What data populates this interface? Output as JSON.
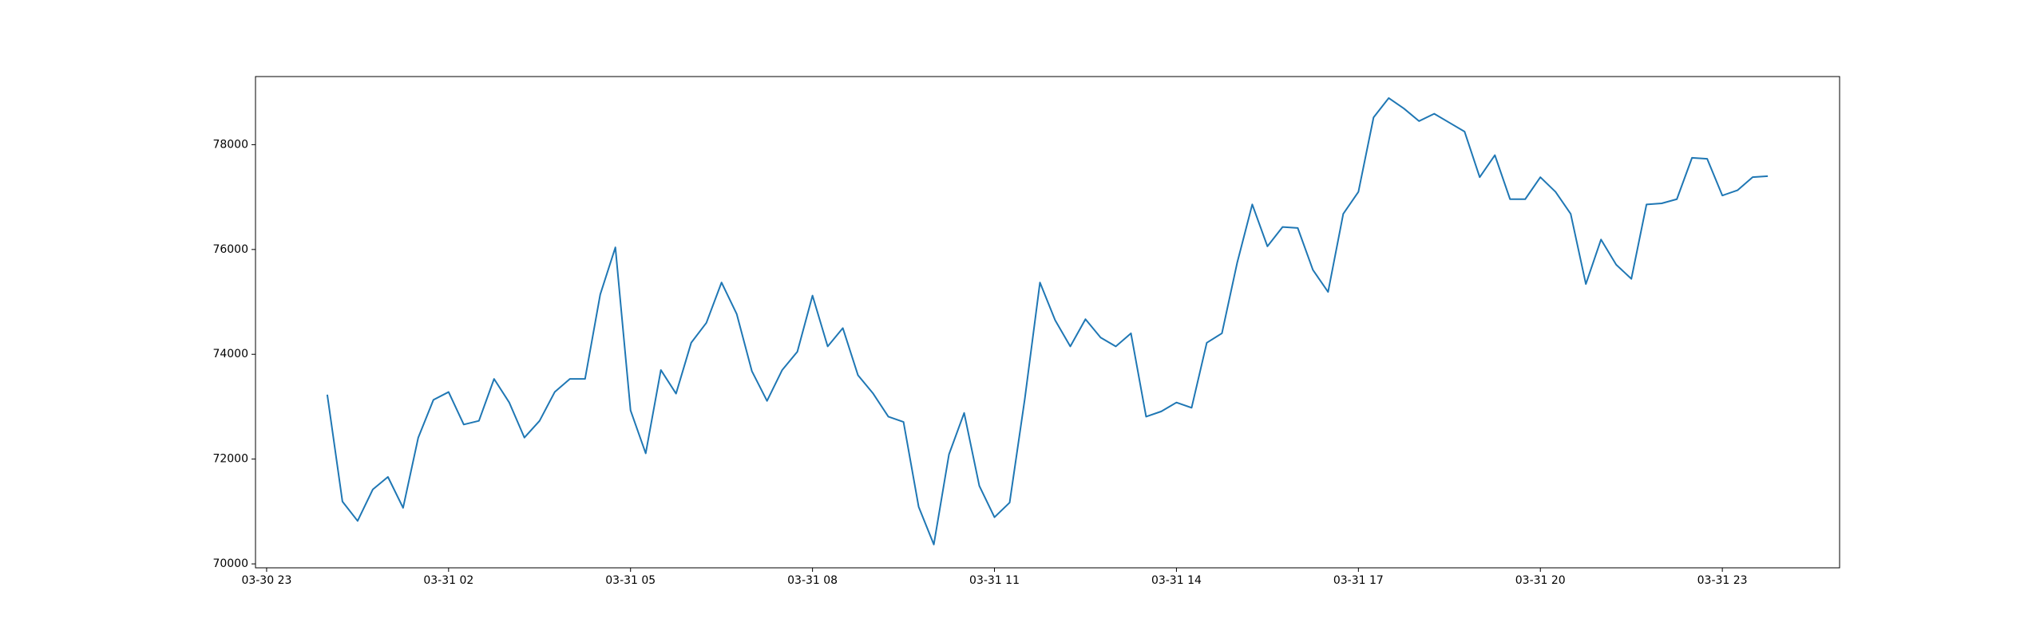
{
  "chart_data": {
    "type": "line",
    "x": [
      "03-31 00:00",
      "03-31 00:15",
      "03-31 00:30",
      "03-31 00:45",
      "03-31 01:00",
      "03-31 01:15",
      "03-31 01:30",
      "03-31 01:45",
      "03-31 02:00",
      "03-31 02:15",
      "03-31 02:30",
      "03-31 02:45",
      "03-31 03:00",
      "03-31 03:15",
      "03-31 03:30",
      "03-31 03:45",
      "03-31 04:00",
      "03-31 04:15",
      "03-31 04:30",
      "03-31 04:45",
      "03-31 05:00",
      "03-31 05:15",
      "03-31 05:30",
      "03-31 05:45",
      "03-31 06:00",
      "03-31 06:15",
      "03-31 06:30",
      "03-31 06:45",
      "03-31 07:00",
      "03-31 07:15",
      "03-31 07:30",
      "03-31 07:45",
      "03-31 08:00",
      "03-31 08:15",
      "03-31 08:30",
      "03-31 08:45",
      "03-31 09:00",
      "03-31 09:15",
      "03-31 09:30",
      "03-31 09:45",
      "03-31 10:00",
      "03-31 10:15",
      "03-31 10:30",
      "03-31 10:45",
      "03-31 11:00",
      "03-31 11:15",
      "03-31 11:30",
      "03-31 11:45",
      "03-31 12:00",
      "03-31 12:15",
      "03-31 12:30",
      "03-31 12:45",
      "03-31 13:00",
      "03-31 13:15",
      "03-31 13:30",
      "03-31 13:45",
      "03-31 14:00",
      "03-31 14:15",
      "03-31 14:30",
      "03-31 14:45",
      "03-31 15:00",
      "03-31 15:15",
      "03-31 15:30",
      "03-31 15:45",
      "03-31 16:00",
      "03-31 16:15",
      "03-31 16:30",
      "03-31 16:45",
      "03-31 17:00",
      "03-31 17:15",
      "03-31 17:30",
      "03-31 17:45",
      "03-31 18:00",
      "03-31 18:15",
      "03-31 18:30",
      "03-31 18:45",
      "03-31 19:00",
      "03-31 19:15",
      "03-31 19:30",
      "03-31 19:45",
      "03-31 20:00",
      "03-31 20:15",
      "03-31 20:30",
      "03-31 20:45",
      "03-31 21:00",
      "03-31 21:15",
      "03-31 21:30",
      "03-31 21:45",
      "03-31 22:00",
      "03-31 22:15",
      "03-31 22:30",
      "03-31 22:45",
      "03-31 23:00",
      "03-31 23:15",
      "03-31 23:30",
      "03-31 23:45"
    ],
    "series": [
      {
        "color": "#1f77b4",
        "values": [
          73230,
          71190,
          70820,
          71420,
          71660,
          71070,
          72410,
          73130,
          73280,
          72660,
          72730,
          73530,
          73080,
          72410,
          72730,
          73280,
          73530,
          73530,
          75140,
          76040,
          72930,
          72110,
          73700,
          73250,
          74220,
          74600,
          75370,
          74770,
          73680,
          73110,
          73700,
          74050,
          75120,
          74150,
          74500,
          73600,
          73250,
          72810,
          72710,
          71090,
          70370,
          72090,
          72880,
          71490,
          70890,
          71170,
          73150,
          75370,
          74650,
          74150,
          74670,
          74320,
          74150,
          74400,
          72810,
          72910,
          73080,
          72980,
          74220,
          74400,
          75740,
          76860,
          76060,
          76430,
          76410,
          75610,
          75190,
          76680,
          77100,
          78520,
          78890,
          78690,
          78450,
          78590,
          78420,
          78250,
          77380,
          77800,
          76960,
          76960,
          77380,
          77100,
          76680,
          75340,
          76190,
          75710,
          75440,
          76860,
          76880,
          76960,
          77750,
          77730,
          77030,
          77130,
          77380,
          77400
        ]
      }
    ],
    "xlim": [
      "03-30 22:49",
      "04-01 00:56"
    ],
    "xticks": [
      "03-30 23",
      "03-31 02",
      "03-31 05",
      "03-31 08",
      "03-31 11",
      "03-31 14",
      "03-31 17",
      "03-31 20",
      "03-31 23"
    ],
    "ylim": [
      69925,
      79300
    ],
    "yticks": [
      70000,
      72000,
      74000,
      76000,
      78000
    ],
    "grid": false
  }
}
